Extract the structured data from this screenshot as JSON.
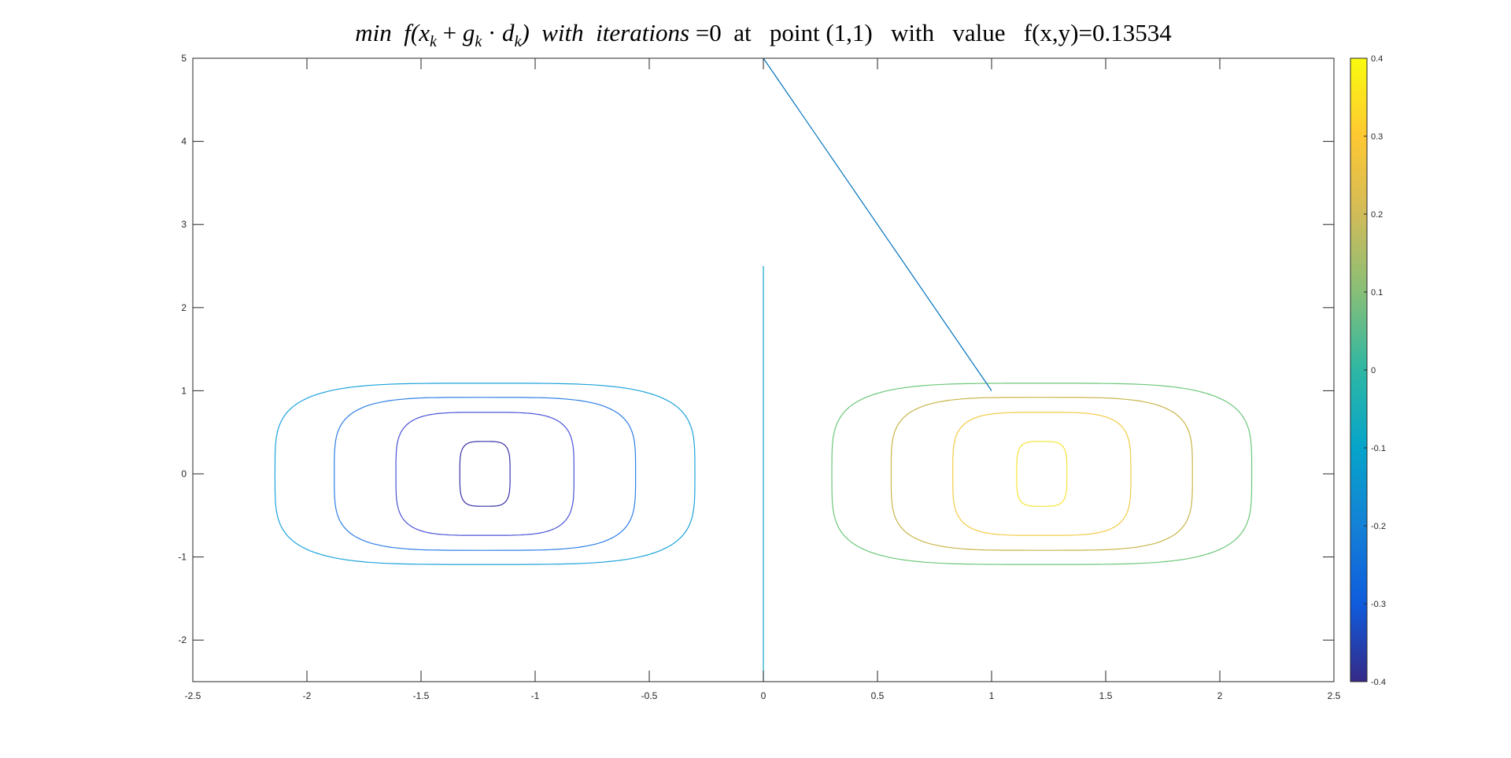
{
  "title": {
    "min": "min",
    "f_open": "f(",
    "x": "x",
    "k1": "k",
    "plus": " + ",
    "g": "g",
    "k2": "k",
    "dot": " · ",
    "d": "d",
    "k3": "k",
    "f_close": ")",
    "with1": "with",
    "iterations": "iterations",
    "eq_iter": "=0",
    "at": "at",
    "point_word": "point",
    "point": "(1,1)",
    "with2": "with",
    "value_word": "value",
    "fxy": "f(x,y)=0.13534"
  },
  "chart_data": {
    "type": "contour",
    "xlim": [
      -2.5,
      2.5
    ],
    "ylim": [
      -2.5,
      5
    ],
    "xticks": [
      "-2.5",
      "-2",
      "-1.5",
      "-1",
      "-0.5",
      "0",
      "0.5",
      "1",
      "1.5",
      "2",
      "2.5"
    ],
    "yticks": [
      "-2",
      "-1",
      "0",
      "1",
      "2",
      "3",
      "4",
      "5"
    ],
    "colorbar": {
      "limits": [
        -0.4,
        0.4
      ],
      "ticks": [
        "0.4",
        "0.3",
        "0.2",
        "0.1",
        "0",
        "-0.1",
        "-0.2",
        "-0.3",
        "-0.4"
      ],
      "colormap": "parula"
    },
    "contour_levels": [
      {
        "level": -0.4,
        "color": "#3a32a8",
        "center": [
          -1.22,
          0
        ],
        "a": 0.11,
        "b": 0.39
      },
      {
        "level": -0.3,
        "color": "#4a52d6",
        "center": [
          -1.22,
          0
        ],
        "a": 0.39,
        "b": 0.74
      },
      {
        "level": -0.2,
        "color": "#2e7fe6",
        "center": [
          -1.22,
          0
        ],
        "a": 0.66,
        "b": 0.92
      },
      {
        "level": -0.1,
        "color": "#1da3dc",
        "center": [
          -1.22,
          0
        ],
        "a": 0.92,
        "b": 1.09
      },
      {
        "level": 0.1,
        "color": "#6cc77a",
        "center": [
          1.22,
          0
        ],
        "a": 0.92,
        "b": 1.09
      },
      {
        "level": 0.2,
        "color": "#c9b54a",
        "center": [
          1.22,
          0
        ],
        "a": 0.66,
        "b": 0.92
      },
      {
        "level": 0.3,
        "color": "#f2cb45",
        "center": [
          1.22,
          0
        ],
        "a": 0.39,
        "b": 0.74
      },
      {
        "level": 0.4,
        "color": "#f4e53a",
        "center": [
          1.22,
          0
        ],
        "a": 0.11,
        "b": 0.39
      }
    ],
    "zero_line": {
      "x": [
        0,
        0
      ],
      "y": [
        -2.5,
        2.5
      ],
      "color": "#16a6c4"
    },
    "search_line": {
      "x": [
        0,
        1
      ],
      "y": [
        5,
        1
      ],
      "color": "#0072bd"
    }
  }
}
